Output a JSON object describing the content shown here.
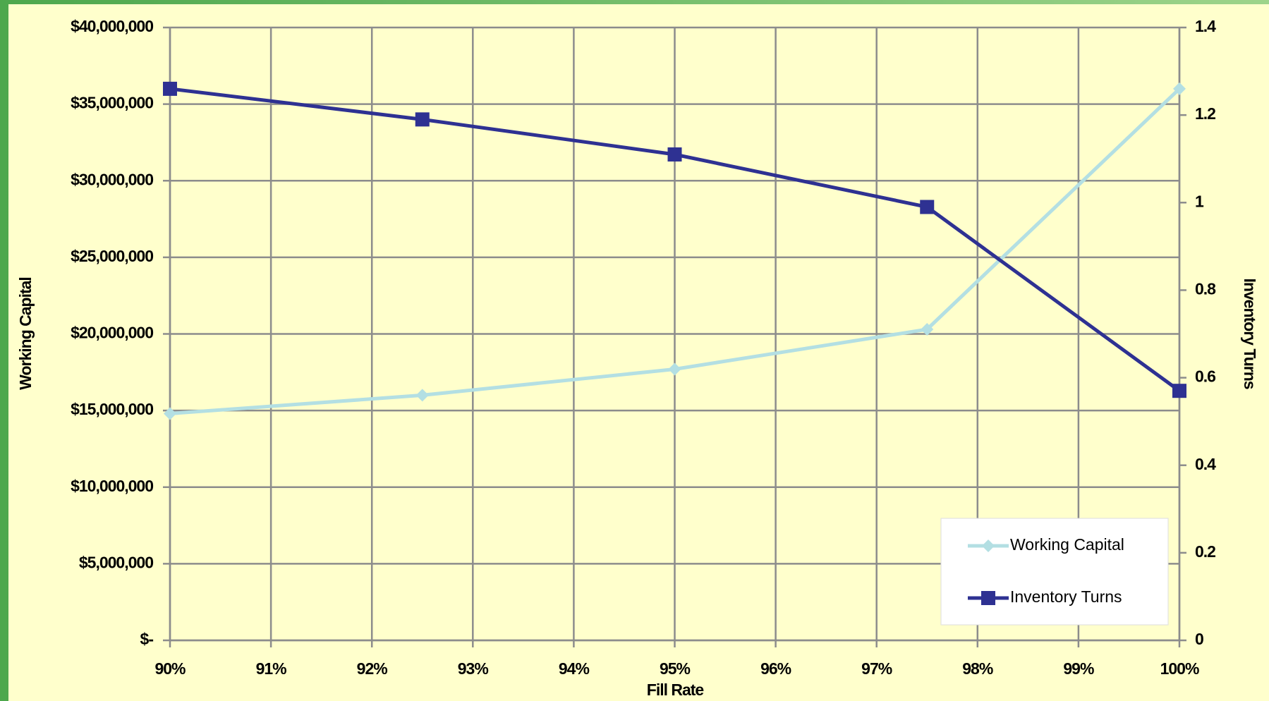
{
  "chart_data": {
    "type": "line",
    "x_label": "Fill Rate",
    "y_label": "Working Capital",
    "y2_label": "Inventory Turns",
    "x": [
      90,
      92.5,
      95,
      97.5,
      100
    ],
    "series": [
      {
        "name": "Working Capital",
        "color": "#b3dfe3",
        "marker": "diamond",
        "values": [
          14800000,
          16000000,
          17700000,
          20300000,
          36000000
        ]
      },
      {
        "name": "Inventory Turns",
        "color": "#2e3192",
        "marker": "square",
        "axis": "y2",
        "values": [
          1.26,
          1.19,
          1.11,
          0.99,
          0.57
        ]
      }
    ],
    "xlim": [
      90,
      100
    ],
    "xticks": [
      {
        "value": 90,
        "label": "90%"
      },
      {
        "value": 91,
        "label": "91%"
      },
      {
        "value": 92,
        "label": "92%"
      },
      {
        "value": 93,
        "label": "93%"
      },
      {
        "value": 94,
        "label": "94%"
      },
      {
        "value": 95,
        "label": "95%"
      },
      {
        "value": 96,
        "label": "96%"
      },
      {
        "value": 97,
        "label": "97%"
      },
      {
        "value": 98,
        "label": "98%"
      },
      {
        "value": 99,
        "label": "99%"
      },
      {
        "value": 100,
        "label": "100%"
      }
    ],
    "ylim": [
      0,
      40000000
    ],
    "yticks": [
      {
        "value": 0,
        "label": "$-"
      },
      {
        "value": 5000000,
        "label": "$5,000,000"
      },
      {
        "value": 10000000,
        "label": "$10,000,000"
      },
      {
        "value": 15000000,
        "label": "$15,000,000"
      },
      {
        "value": 20000000,
        "label": "$20,000,000"
      },
      {
        "value": 25000000,
        "label": "$25,000,000"
      },
      {
        "value": 30000000,
        "label": "$30,000,000"
      },
      {
        "value": 35000000,
        "label": "$35,000,000"
      },
      {
        "value": 40000000,
        "label": "$40,000,000"
      }
    ],
    "y2lim": [
      0,
      1.4
    ],
    "y2ticks": [
      0,
      0.2,
      0.4,
      0.6,
      0.8,
      1,
      1.2,
      1.4
    ],
    "grid": true,
    "legend": "lower right"
  }
}
